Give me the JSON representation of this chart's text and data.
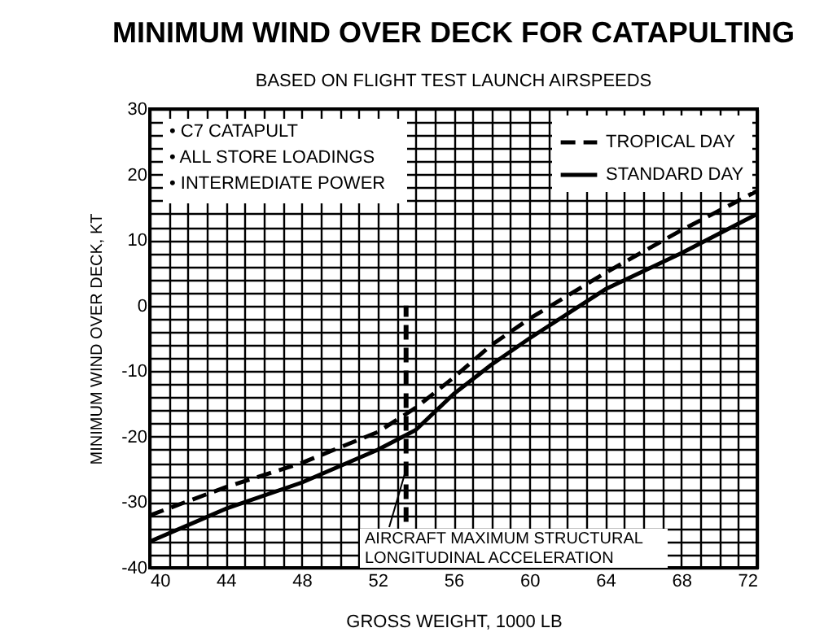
{
  "chart_data": {
    "type": "line",
    "title": "MINIMUM WIND OVER DECK FOR CATAPULTING",
    "subtitle": "BASED ON FLIGHT TEST LAUNCH AIRSPEEDS",
    "xlabel": "GROSS WEIGHT, 1000 LB",
    "ylabel": "MINIMUM WIND OVER DECK, KT",
    "xlim": [
      40,
      72
    ],
    "ylim": [
      -40,
      30
    ],
    "xticks": [
      40,
      {
        "value": 41,
        "label": null
      },
      {
        "value": 42,
        "label": null
      },
      {
        "value": 43,
        "label": null
      },
      44,
      {
        "value": 45,
        "label": null
      },
      {
        "value": 46,
        "label": null
      },
      {
        "value": 47,
        "label": null
      },
      48,
      {
        "value": 49,
        "label": null
      },
      {
        "value": 50,
        "label": null
      },
      {
        "value": 51,
        "label": null
      },
      52,
      {
        "value": 53,
        "label": null
      },
      {
        "value": 54,
        "label": null
      },
      {
        "value": 55,
        "label": null
      },
      56,
      {
        "value": 57,
        "label": null
      },
      {
        "value": 58,
        "label": null
      },
      {
        "value": 59,
        "label": null
      },
      60,
      {
        "value": 61,
        "label": null
      },
      {
        "value": 62,
        "label": null
      },
      {
        "value": 63,
        "label": null
      },
      64,
      {
        "value": 65,
        "label": null
      },
      {
        "value": 66,
        "label": null
      },
      {
        "value": 67,
        "label": null
      },
      68,
      {
        "value": 69,
        "label": null
      },
      {
        "value": 70,
        "label": null
      },
      {
        "value": 71,
        "label": null
      },
      72
    ],
    "yticks": [
      -40,
      {
        "value": -38,
        "label": null
      },
      {
        "value": -36,
        "label": null
      },
      {
        "value": -34,
        "label": null
      },
      {
        "value": -32,
        "label": null
      },
      -30,
      {
        "value": -28,
        "label": null
      },
      {
        "value": -26,
        "label": null
      },
      {
        "value": -24,
        "label": null
      },
      {
        "value": -22,
        "label": null
      },
      -20,
      {
        "value": -18,
        "label": null
      },
      {
        "value": -16,
        "label": null
      },
      {
        "value": -14,
        "label": null
      },
      {
        "value": -12,
        "label": null
      },
      -10,
      {
        "value": -8,
        "label": null
      },
      {
        "value": -6,
        "label": null
      },
      {
        "value": -4,
        "label": null
      },
      {
        "value": -2,
        "label": null
      },
      0,
      {
        "value": 2,
        "label": null
      },
      {
        "value": 4,
        "label": null
      },
      {
        "value": 6,
        "label": null
      },
      {
        "value": 8,
        "label": null
      },
      10,
      {
        "value": 12,
        "label": null
      },
      {
        "value": 14,
        "label": null
      },
      {
        "value": 16,
        "label": null
      },
      {
        "value": 18,
        "label": null
      },
      20,
      {
        "value": 22,
        "label": null
      },
      {
        "value": 24,
        "label": null
      },
      {
        "value": 26,
        "label": null
      },
      {
        "value": 28,
        "label": null
      },
      30
    ],
    "grid": true,
    "legend": "top right",
    "series": [
      {
        "name": "TROPICAL DAY",
        "color": "#000000",
        "line_style": "dashed",
        "x": [
          40,
          44,
          48,
          52,
          54,
          56,
          58,
          60,
          64,
          68,
          72
        ],
        "values": [
          -32,
          -27.7,
          -24,
          -19.3,
          -15.6,
          -11,
          -6,
          -2,
          5,
          11.5,
          17.5
        ]
      },
      {
        "name": "STANDARD DAY",
        "color": "#000000",
        "line_style": "solid",
        "x": [
          40,
          44,
          48,
          52,
          54,
          56,
          58,
          60,
          64,
          68,
          72
        ],
        "values": [
          -36,
          -31,
          -27,
          -22,
          -19,
          -13.5,
          -9,
          -5,
          2.5,
          8,
          14
        ]
      },
      {
        "color": "#000000",
        "line_style": "dashed",
        "x": [
          53.5,
          53.5
        ],
        "values": [
          -33,
          0
        ]
      }
    ],
    "annotations": [
      "• C7 CATAPULT",
      "• ALL STORE LOADINGS",
      "• INTERMEDIATE POWER",
      {
        "text": "AIRCRAFT MAXIMUM STRUCTURAL LONGITUDINAL ACCELERATION",
        "x": 53.5,
        "y": -25
      }
    ]
  }
}
